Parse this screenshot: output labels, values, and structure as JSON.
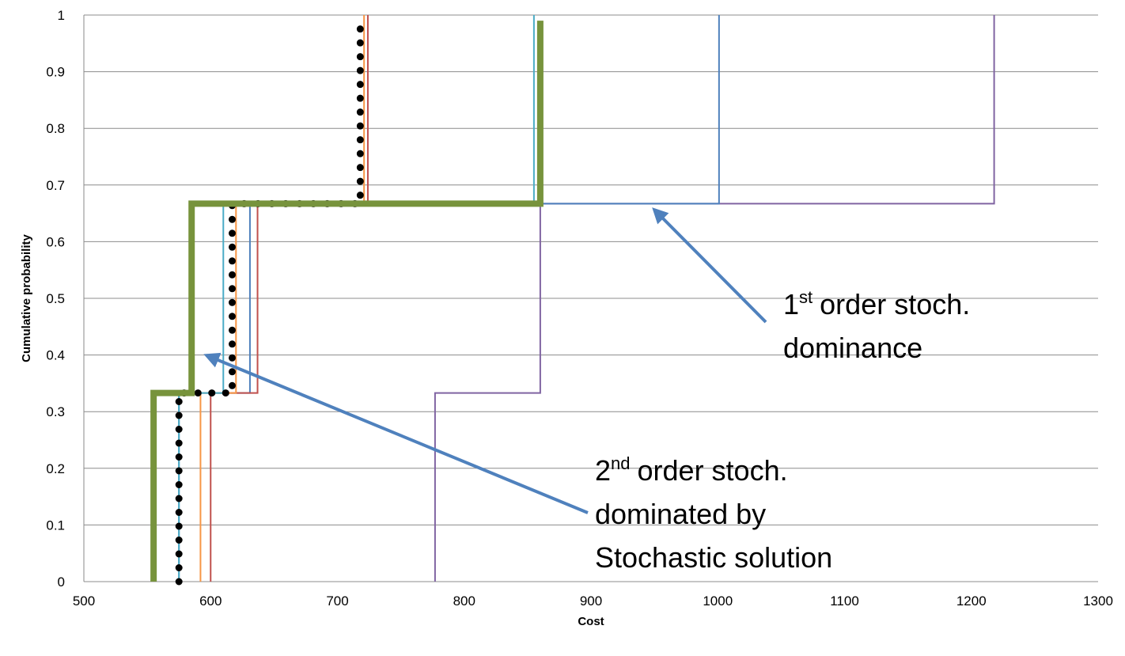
{
  "chart_data": {
    "type": "line",
    "x_label": "Cost",
    "y_label": "Cumulative probability",
    "xlim": [
      500,
      1300
    ],
    "ylim": [
      0,
      1
    ],
    "xticks": [
      500,
      600,
      700,
      800,
      900,
      1000,
      1100,
      1200,
      1300
    ],
    "yticks": [
      0,
      0.1,
      0.2,
      0.3,
      0.4,
      0.5,
      0.6,
      0.7,
      0.8,
      0.9,
      1
    ],
    "grid": true,
    "series": [
      {
        "color": "#8064a2",
        "width": 2,
        "x": [
          777,
          777,
          860,
          860,
          1218,
          1218
        ],
        "values": [
          0,
          0.333,
          0.333,
          0.667,
          0.667,
          1
        ]
      },
      {
        "color": "#4f81bd",
        "width": 2,
        "x": [
          575,
          575,
          631,
          631,
          1001,
          1001
        ],
        "values": [
          0,
          0.333,
          0.333,
          0.667,
          0.667,
          1
        ]
      },
      {
        "color": "#c0504d",
        "width": 2,
        "x": [
          600,
          600,
          637,
          637,
          724,
          724
        ],
        "values": [
          0,
          0.333,
          0.333,
          0.667,
          0.667,
          1
        ]
      },
      {
        "color": "#f79646",
        "width": 2,
        "x": [
          592,
          592,
          620,
          620,
          721,
          721
        ],
        "values": [
          0,
          0.333,
          0.333,
          0.667,
          0.667,
          1
        ]
      },
      {
        "color": "#4bacc6",
        "width": 2,
        "x": [
          575,
          575,
          610,
          610,
          855,
          855
        ],
        "values": [
          0,
          0.333,
          0.333,
          0.667,
          0.667,
          1
        ]
      },
      {
        "color": "#000000",
        "width": 9,
        "dotted": true,
        "x": [
          575,
          575,
          617,
          617,
          718,
          718
        ],
        "values": [
          0,
          0.333,
          0.333,
          0.667,
          0.667,
          0.98
        ]
      },
      {
        "color": "#77933c",
        "width": 8,
        "x": [
          555,
          555,
          585,
          585,
          860,
          860
        ],
        "values": [
          0,
          0.333,
          0.333,
          0.667,
          0.667,
          0.99
        ]
      }
    ],
    "annotations": [
      {
        "number": "1",
        "suffix": "st",
        "lines": [
          "order stoch.",
          "dominance"
        ]
      },
      {
        "number": "2",
        "suffix": "nd",
        "lines": [
          "order stoch.",
          "dominated by",
          "Stochastic solution"
        ]
      }
    ]
  }
}
